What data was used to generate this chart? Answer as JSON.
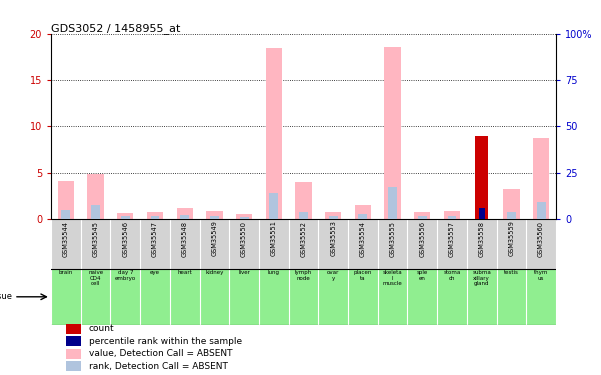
{
  "title": "GDS3052 / 1458955_at",
  "samples": [
    "GSM35544",
    "GSM35545",
    "GSM35546",
    "GSM35547",
    "GSM35548",
    "GSM35549",
    "GSM35550",
    "GSM35551",
    "GSM35552",
    "GSM35553",
    "GSM35554",
    "GSM35555",
    "GSM35556",
    "GSM35557",
    "GSM35558",
    "GSM35559",
    "GSM35560"
  ],
  "tissues": [
    "brain",
    "naive\nCD4\ncell",
    "day 7\nembryo",
    "eye",
    "heart",
    "kidney",
    "liver",
    "lung",
    "lymph\nnode",
    "ovar\ny",
    "placen\nta",
    "skeleta\nl\nmuscle",
    "sple\nen",
    "stoma\nch",
    "subma\nxillary\ngland",
    "testis",
    "thym\nus"
  ],
  "tissue_is_green": [
    true,
    true,
    true,
    true,
    true,
    true,
    true,
    true,
    true,
    true,
    true,
    true,
    true,
    true,
    true,
    true,
    true
  ],
  "value_absent": [
    4.1,
    4.9,
    0.7,
    0.8,
    1.2,
    0.9,
    0.5,
    18.5,
    4.0,
    0.8,
    1.5,
    18.6,
    0.8,
    0.9,
    0.0,
    3.2,
    8.7
  ],
  "rank_absent": [
    1.0,
    1.5,
    0.3,
    0.3,
    0.4,
    0.3,
    0.2,
    2.8,
    0.8,
    0.3,
    0.5,
    3.5,
    0.3,
    0.3,
    0.0,
    0.8,
    1.8
  ],
  "count": [
    0,
    0,
    0,
    0,
    0,
    0,
    0,
    0,
    0,
    0,
    0,
    0,
    0,
    0,
    9.0,
    0,
    0
  ],
  "percentile": [
    0,
    0,
    0,
    0,
    0,
    0,
    0,
    0,
    0,
    0,
    0,
    0,
    0,
    0,
    1.2,
    0,
    0
  ],
  "ylim_left": [
    0,
    20
  ],
  "ylim_right": [
    0,
    100
  ],
  "yticks_left": [
    0,
    5,
    10,
    15,
    20
  ],
  "yticks_right": [
    0,
    25,
    50,
    75,
    100
  ],
  "yticklabels_right": [
    "0",
    "25",
    "50",
    "75",
    "100%"
  ],
  "color_value_absent": "#ffb6c1",
  "color_rank_absent": "#b0c4de",
  "color_count": "#cc0000",
  "color_percentile": "#00008b",
  "gsm_bg_color": "#d3d3d3",
  "tissue_bg_color": "#90ee90",
  "left_axis_color": "#cc0000",
  "right_axis_color": "#0000cc",
  "legend_items": [
    {
      "color": "#cc0000",
      "label": "count"
    },
    {
      "color": "#00008b",
      "label": "percentile rank within the sample"
    },
    {
      "color": "#ffb6c1",
      "label": "value, Detection Call = ABSENT"
    },
    {
      "color": "#b0c4de",
      "label": "rank, Detection Call = ABSENT"
    }
  ]
}
